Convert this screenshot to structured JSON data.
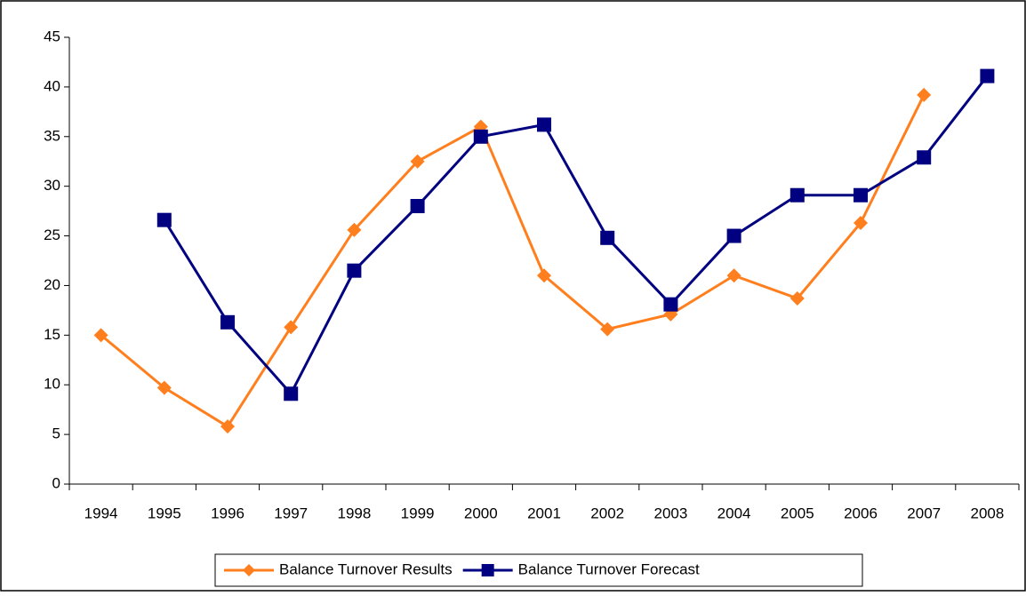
{
  "chart_data": {
    "type": "line",
    "categories": [
      "1994",
      "1995",
      "1996",
      "1997",
      "1998",
      "1999",
      "2000",
      "2001",
      "2002",
      "2003",
      "2004",
      "2005",
      "2006",
      "2007",
      "2008"
    ],
    "series": [
      {
        "name": "Balance Turnover Results",
        "color": "#ff7f1e",
        "marker": "diamond",
        "values": [
          15,
          9.7,
          5.8,
          15.8,
          25.6,
          32.5,
          36,
          21,
          15.6,
          17.1,
          21,
          18.7,
          26.3,
          39.2,
          null
        ]
      },
      {
        "name": "Balance Turnover Forecast",
        "color": "#000080",
        "marker": "square",
        "values": [
          null,
          26.6,
          16.3,
          9.1,
          21.5,
          28,
          35,
          36.2,
          24.8,
          18.1,
          25,
          29.1,
          29.1,
          32.9,
          41.1
        ]
      }
    ],
    "ylim": [
      0,
      45
    ],
    "yticks": [
      0,
      5,
      10,
      15,
      20,
      25,
      30,
      35,
      40,
      45
    ],
    "grid": false,
    "legend": "bottom"
  }
}
